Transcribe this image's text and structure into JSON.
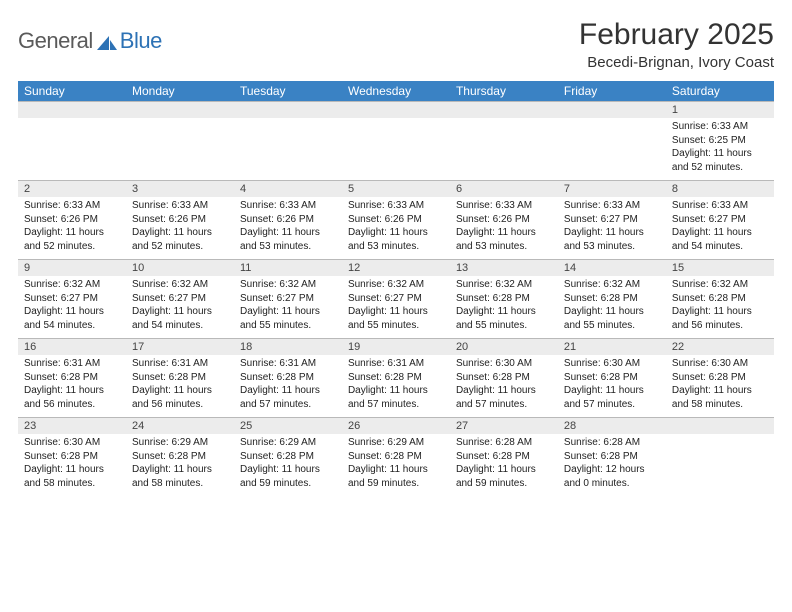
{
  "logo": {
    "text1": "General",
    "text2": "Blue",
    "accent": "#2d72b5",
    "gray": "#5a5a5a"
  },
  "title": "February 2025",
  "location": "Becedi-Brignan, Ivory Coast",
  "header_bg": "#3a82c4",
  "daynum_bg": "#ececec",
  "border_color": "#b9b9b9",
  "day_names": [
    "Sunday",
    "Monday",
    "Tuesday",
    "Wednesday",
    "Thursday",
    "Friday",
    "Saturday"
  ],
  "weeks": [
    {
      "nums": [
        "",
        "",
        "",
        "",
        "",
        "",
        "1"
      ],
      "cells": [
        "",
        "",
        "",
        "",
        "",
        "",
        "Sunrise: 6:33 AM\nSunset: 6:25 PM\nDaylight: 11 hours and 52 minutes."
      ]
    },
    {
      "nums": [
        "2",
        "3",
        "4",
        "5",
        "6",
        "7",
        "8"
      ],
      "cells": [
        "Sunrise: 6:33 AM\nSunset: 6:26 PM\nDaylight: 11 hours and 52 minutes.",
        "Sunrise: 6:33 AM\nSunset: 6:26 PM\nDaylight: 11 hours and 52 minutes.",
        "Sunrise: 6:33 AM\nSunset: 6:26 PM\nDaylight: 11 hours and 53 minutes.",
        "Sunrise: 6:33 AM\nSunset: 6:26 PM\nDaylight: 11 hours and 53 minutes.",
        "Sunrise: 6:33 AM\nSunset: 6:26 PM\nDaylight: 11 hours and 53 minutes.",
        "Sunrise: 6:33 AM\nSunset: 6:27 PM\nDaylight: 11 hours and 53 minutes.",
        "Sunrise: 6:33 AM\nSunset: 6:27 PM\nDaylight: 11 hours and 54 minutes."
      ]
    },
    {
      "nums": [
        "9",
        "10",
        "11",
        "12",
        "13",
        "14",
        "15"
      ],
      "cells": [
        "Sunrise: 6:32 AM\nSunset: 6:27 PM\nDaylight: 11 hours and 54 minutes.",
        "Sunrise: 6:32 AM\nSunset: 6:27 PM\nDaylight: 11 hours and 54 minutes.",
        "Sunrise: 6:32 AM\nSunset: 6:27 PM\nDaylight: 11 hours and 55 minutes.",
        "Sunrise: 6:32 AM\nSunset: 6:27 PM\nDaylight: 11 hours and 55 minutes.",
        "Sunrise: 6:32 AM\nSunset: 6:28 PM\nDaylight: 11 hours and 55 minutes.",
        "Sunrise: 6:32 AM\nSunset: 6:28 PM\nDaylight: 11 hours and 55 minutes.",
        "Sunrise: 6:32 AM\nSunset: 6:28 PM\nDaylight: 11 hours and 56 minutes."
      ]
    },
    {
      "nums": [
        "16",
        "17",
        "18",
        "19",
        "20",
        "21",
        "22"
      ],
      "cells": [
        "Sunrise: 6:31 AM\nSunset: 6:28 PM\nDaylight: 11 hours and 56 minutes.",
        "Sunrise: 6:31 AM\nSunset: 6:28 PM\nDaylight: 11 hours and 56 minutes.",
        "Sunrise: 6:31 AM\nSunset: 6:28 PM\nDaylight: 11 hours and 57 minutes.",
        "Sunrise: 6:31 AM\nSunset: 6:28 PM\nDaylight: 11 hours and 57 minutes.",
        "Sunrise: 6:30 AM\nSunset: 6:28 PM\nDaylight: 11 hours and 57 minutes.",
        "Sunrise: 6:30 AM\nSunset: 6:28 PM\nDaylight: 11 hours and 57 minutes.",
        "Sunrise: 6:30 AM\nSunset: 6:28 PM\nDaylight: 11 hours and 58 minutes."
      ]
    },
    {
      "nums": [
        "23",
        "24",
        "25",
        "26",
        "27",
        "28",
        ""
      ],
      "cells": [
        "Sunrise: 6:30 AM\nSunset: 6:28 PM\nDaylight: 11 hours and 58 minutes.",
        "Sunrise: 6:29 AM\nSunset: 6:28 PM\nDaylight: 11 hours and 58 minutes.",
        "Sunrise: 6:29 AM\nSunset: 6:28 PM\nDaylight: 11 hours and 59 minutes.",
        "Sunrise: 6:29 AM\nSunset: 6:28 PM\nDaylight: 11 hours and 59 minutes.",
        "Sunrise: 6:28 AM\nSunset: 6:28 PM\nDaylight: 11 hours and 59 minutes.",
        "Sunrise: 6:28 AM\nSunset: 6:28 PM\nDaylight: 12 hours and 0 minutes.",
        ""
      ]
    }
  ]
}
